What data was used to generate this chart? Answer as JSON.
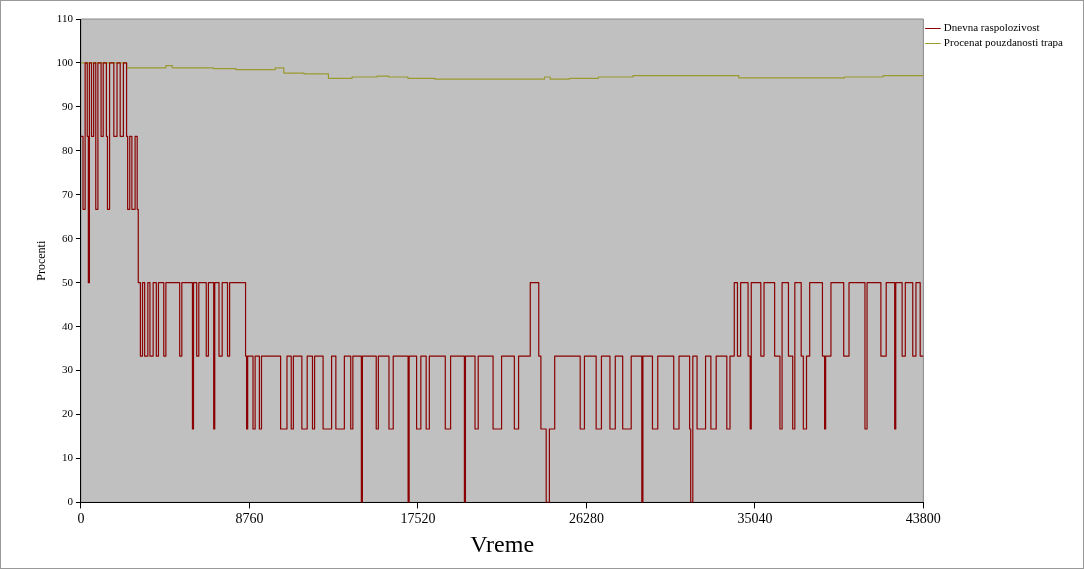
{
  "chart_data": {
    "type": "step",
    "xlabel": "Vreme",
    "ylabel": "Procenti",
    "xlim": [
      0,
      43800
    ],
    "xticks": [
      0,
      8760,
      17520,
      26280,
      35040,
      43800
    ],
    "ylim": [
      0,
      110
    ],
    "yticks": [
      0,
      10,
      20,
      30,
      40,
      50,
      60,
      70,
      80,
      90,
      100,
      110
    ],
    "grid": false,
    "legend": "top right",
    "marker": "none",
    "line_style": "solid",
    "series": [
      {
        "name": "Dnevna raspolozivost",
        "color": "#8b0000",
        "x": [
          0,
          110,
          220,
          330,
          387,
          442,
          552,
          663,
          773,
          884,
          1049,
          1160,
          1325,
          1381,
          1491,
          1712,
          1878,
          2043,
          2209,
          2375,
          2430,
          2540,
          2651,
          2817,
          2927,
          2982,
          3093,
          3203,
          3314,
          3480,
          3590,
          3756,
          3921,
          4032,
          4308,
          4418,
          5136,
          5247,
          5799,
          5854,
          6020,
          6130,
          6517,
          6628,
          6904,
          6959,
          7180,
          7346,
          7622,
          7732,
          8561,
          8616,
          8671,
          8947,
          9058,
          9279,
          9389,
          10383,
          10714,
          10935,
          11046,
          11488,
          11764,
          12040,
          12150,
          12592,
          13034,
          13255,
          13697,
          14028,
          14139,
          14581,
          14636,
          15354,
          15464,
          16017,
          16238,
          17011,
          17066,
          17452,
          17673,
          17950,
          18115,
          18944,
          19220,
          19938,
          19993,
          20490,
          20656,
          21429,
          21871,
          22534,
          22755,
          23362,
          23804,
          23915,
          24191,
          24357,
          24633,
          25958,
          26179,
          26787,
          27063,
          27505,
          27781,
          28168,
          28610,
          29162,
          29218,
          29715,
          29991,
          30820,
          31096,
          31648,
          31703,
          31813,
          32034,
          32476,
          32752,
          33028,
          33581,
          33747,
          33968,
          34134,
          34300,
          34686,
          34797,
          34852,
          35349,
          35515,
          36067,
          36343,
          36454,
          36785,
          37006,
          37117,
          37448,
          37559,
          37725,
          37890,
          38553,
          38664,
          38719,
          38995,
          39658,
          39934,
          40763,
          40873,
          41591,
          41867,
          42309,
          42364,
          42696,
          42861,
          43248,
          43414,
          43635,
          43800
        ],
        "values": [
          83.3,
          66.7,
          100,
          83.3,
          50,
          100,
          83.3,
          100,
          66.7,
          100,
          83.3,
          100,
          83.3,
          66.7,
          100,
          83.3,
          100,
          83.3,
          100,
          83.3,
          66.7,
          83.3,
          66.7,
          83.3,
          66.7,
          50,
          33.3,
          50,
          33.3,
          50,
          33.3,
          50,
          33.3,
          50,
          33.3,
          50,
          33.3,
          50,
          16.7,
          50,
          33.3,
          50,
          33.3,
          50,
          16.7,
          50,
          33.3,
          50,
          33.3,
          50,
          33.3,
          16.7,
          33.3,
          16.7,
          33.3,
          16.7,
          33.3,
          16.7,
          33.3,
          16.7,
          33.3,
          16.7,
          33.3,
          16.7,
          33.3,
          16.7,
          33.3,
          16.7,
          33.3,
          16.7,
          33.3,
          0,
          33.3,
          16.7,
          33.3,
          16.7,
          33.3,
          0,
          33.3,
          16.7,
          33.3,
          16.7,
          33.3,
          16.7,
          33.3,
          0,
          33.3,
          16.7,
          33.3,
          16.7,
          33.3,
          16.7,
          33.3,
          50,
          33.3,
          16.7,
          0,
          16.7,
          33.3,
          16.7,
          33.3,
          16.7,
          33.3,
          16.7,
          33.3,
          16.7,
          33.3,
          0,
          33.3,
          16.7,
          33.3,
          16.7,
          33.3,
          16.7,
          0,
          33.3,
          16.7,
          33.3,
          16.7,
          33.3,
          16.7,
          33.3,
          50,
          33.3,
          50,
          33.3,
          16.7,
          50,
          33.3,
          50,
          33.3,
          16.7,
          50,
          33.3,
          16.7,
          50,
          33.3,
          16.7,
          33.3,
          50,
          33.3,
          16.7,
          33.3,
          50,
          33.3,
          50,
          16.7,
          50,
          33.3,
          50,
          16.7,
          50,
          33.3,
          50,
          33.3,
          50,
          33.3,
          33.3
        ]
      },
      {
        "name": "Procenat pouzdanosti trapa",
        "color": "#9a9a30",
        "x": [
          0,
          2375,
          4418,
          4750,
          6904,
          8064,
          10107,
          10549,
          11600,
          12868,
          14100,
          15400,
          16000,
          17000,
          18400,
          24100,
          24400,
          25400,
          26900,
          28700,
          34200,
          39700,
          41700,
          43800
        ],
        "values": [
          100,
          98.9,
          99.4,
          98.9,
          98.7,
          98.5,
          98.9,
          97.7,
          97.5,
          96.5,
          96.8,
          97,
          96.8,
          96.5,
          96.3,
          96.8,
          96.3,
          96.5,
          96.8,
          97.1,
          96.6,
          96.8,
          97.1,
          97.1
        ]
      }
    ]
  }
}
